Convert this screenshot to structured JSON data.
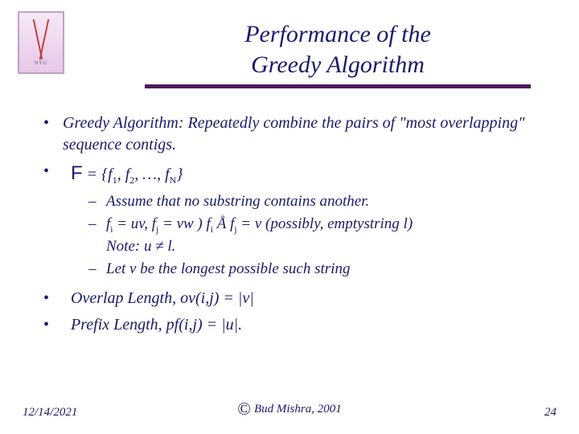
{
  "colors": {
    "text_primary": "#1a1a6a",
    "rule": "#4a1a5a",
    "background": "#ffffff",
    "logo_border": "#c0a0c8"
  },
  "logo": {
    "caption": "NYU"
  },
  "title": {
    "line1": "Performance of the",
    "line2": "Greedy Algorithm"
  },
  "bullets": {
    "b1": "Greedy Algorithm: Repeatedly combine the pairs of \"most overlapping\" sequence contigs.",
    "b2_prefix": "F",
    "b2_rest": " = {f",
    "b2_s1": "1",
    "b2_mid1": ", f",
    "b2_s2": "2",
    "b2_mid2": ", …, f",
    "b2_sN": "N",
    "b2_end": "}",
    "b3": "Overlap Length, ov(i,j) = |v|",
    "b4": "Prefix Length, pf(i,j) = |u|."
  },
  "subs": {
    "s1": "Assume that no substring contains another.",
    "s2_a": "f",
    "s2_i": "i",
    "s2_b": " = uv, f",
    "s2_j": "j",
    "s2_c": " = vw ) f",
    "s2_d": " Å f",
    "s2_e": " = v (possibly, emptystring l)",
    "s2_note": "Note: u ≠ l.",
    "s3": "Let v be the longest possible such string"
  },
  "footer": {
    "date": "12/14/2021",
    "center": "Bud Mishra, 2001",
    "page": "24"
  },
  "typography": {
    "title_fontsize": 30,
    "body_fontsize": 20,
    "sub_fontsize": 19,
    "footer_fontsize": 15
  }
}
